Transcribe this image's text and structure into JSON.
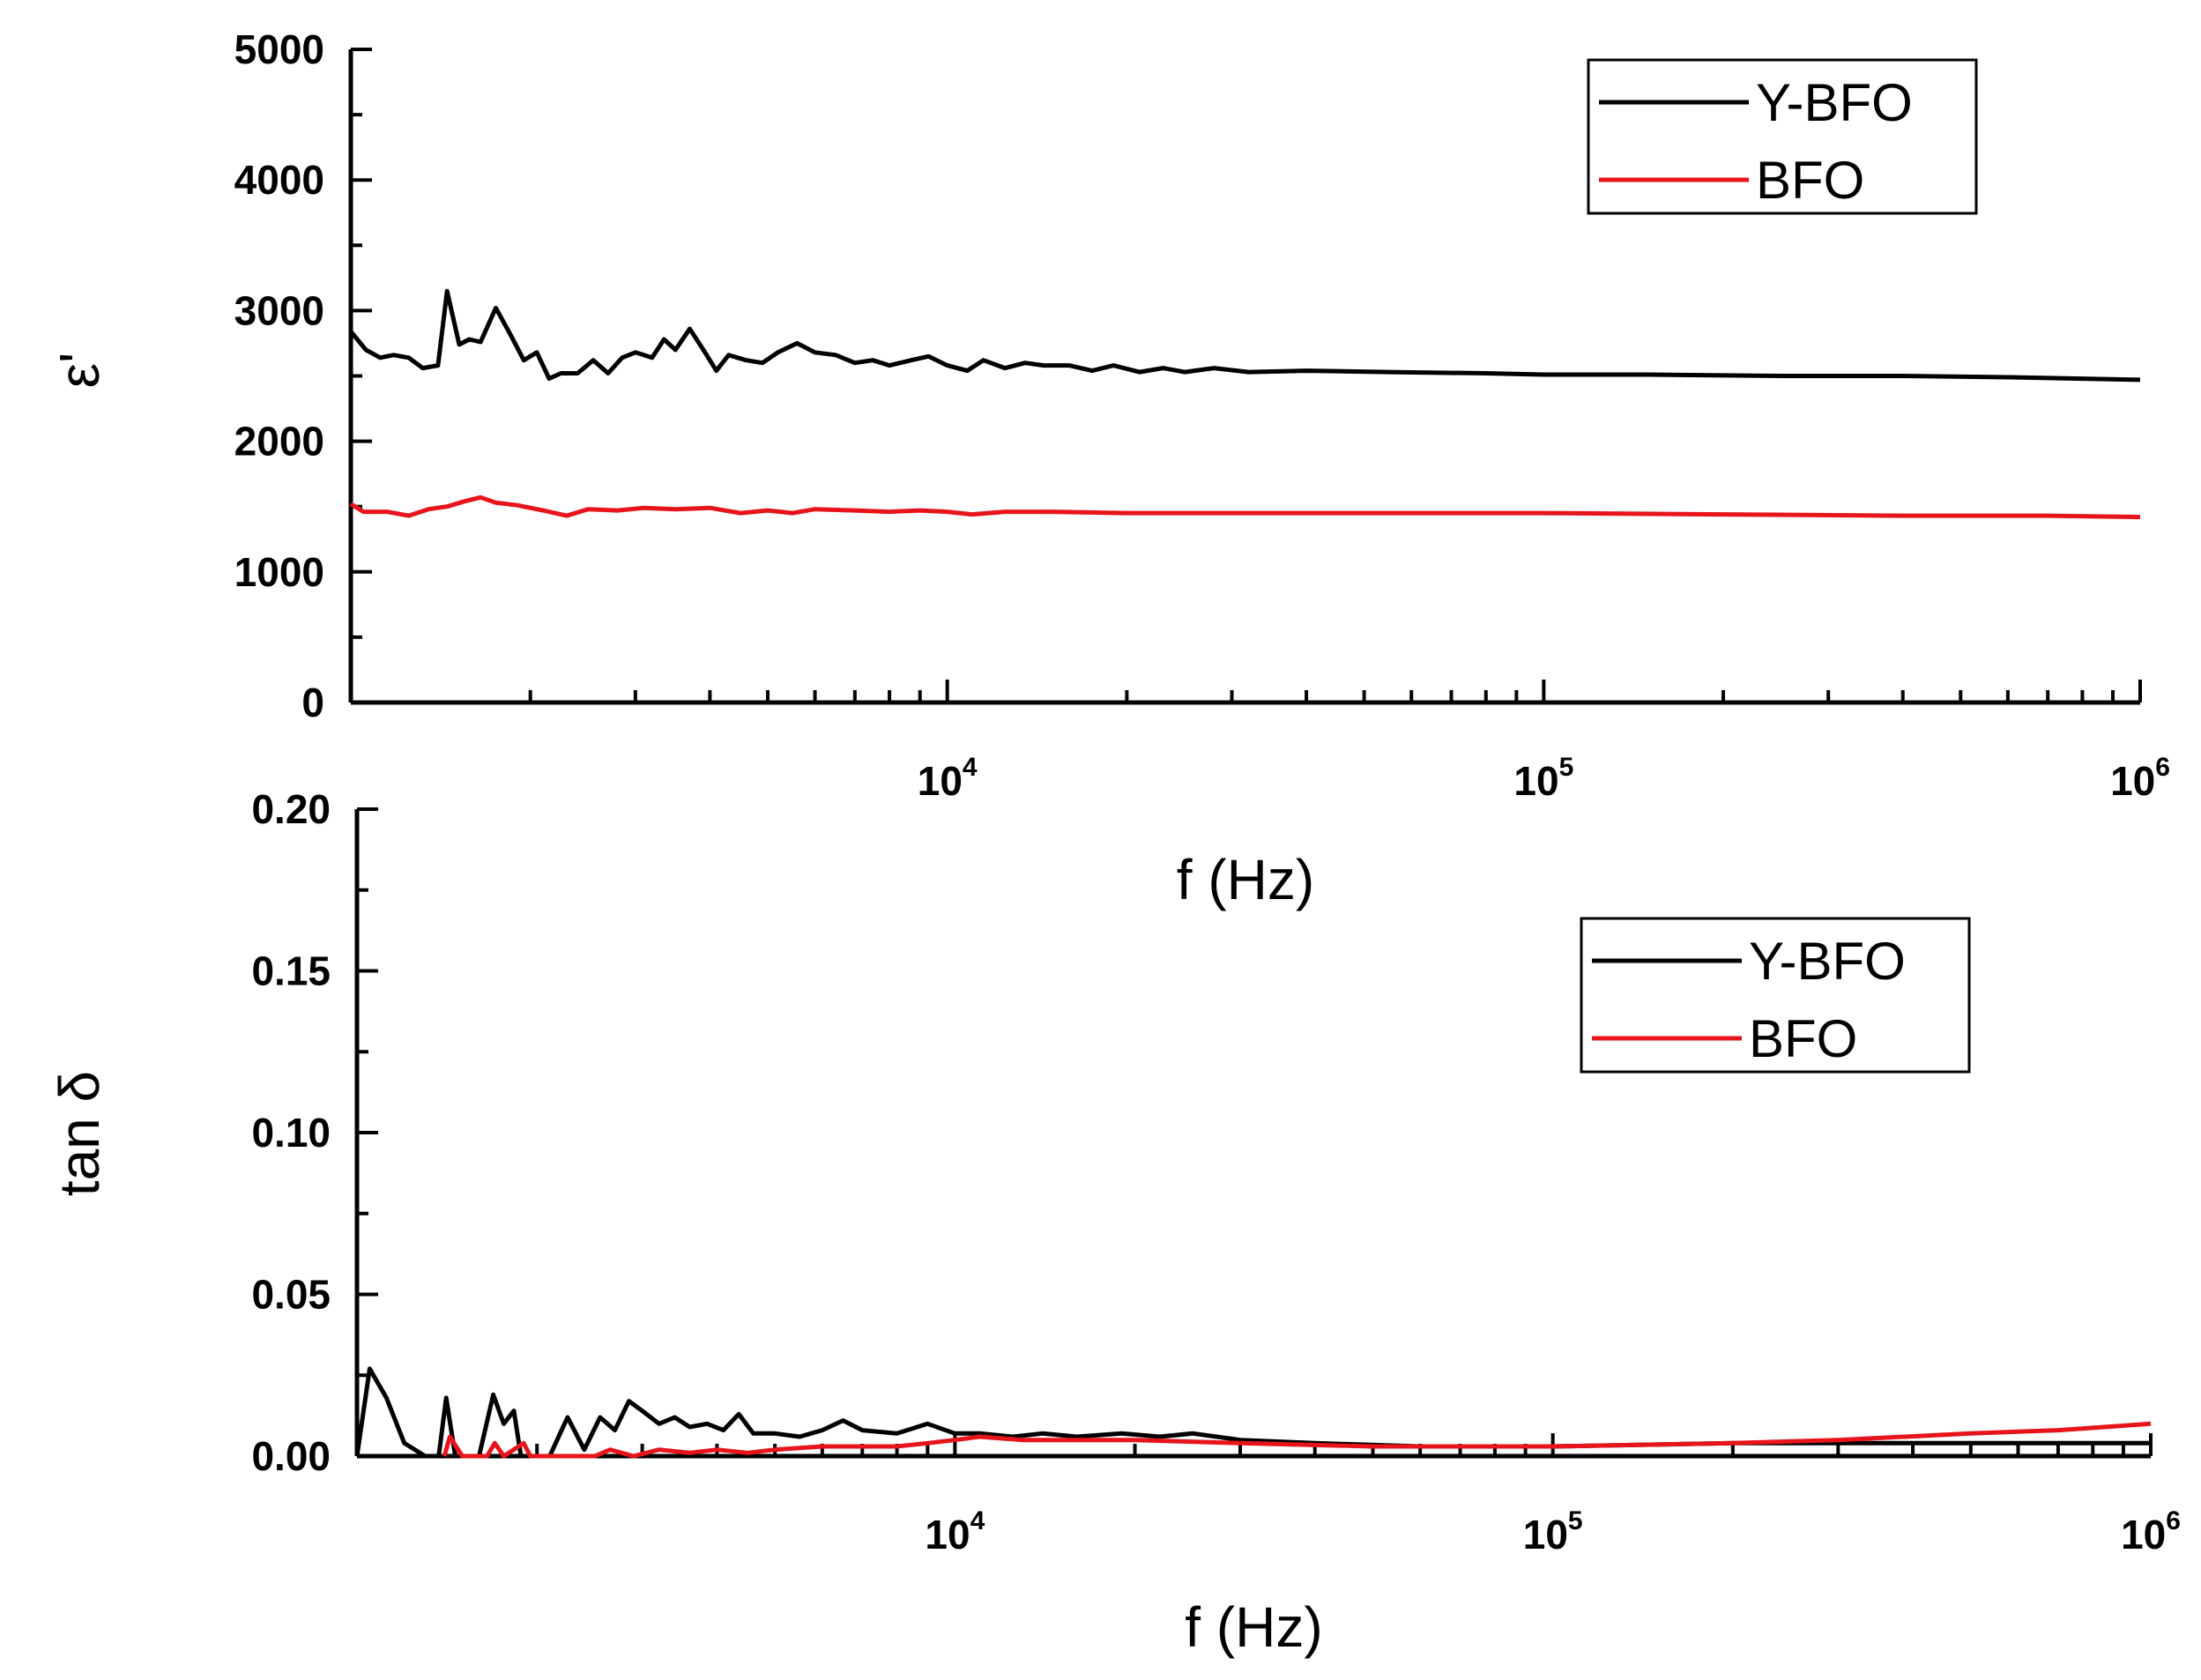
{
  "chart_data": [
    {
      "type": "line",
      "x_scale": "log",
      "xlim": [
        1000,
        1000000
      ],
      "ylim": [
        0,
        5000
      ],
      "ylabel": "ε'",
      "xlabel": "f (Hz)",
      "y_ticks": [
        "0",
        "1000",
        "2000",
        "3000",
        "4000",
        "5000"
      ],
      "x_ticks": [
        {
          "value": 10000,
          "base": "10",
          "exp": "4"
        },
        {
          "value": 100000,
          "base": "10",
          "exp": "5"
        },
        {
          "value": 1000000,
          "base": "10",
          "exp": "6"
        }
      ],
      "legend": {
        "position": "top-right"
      },
      "series": [
        {
          "name": "Y-BFO",
          "color": "#000000",
          "points": [
            [
              1000,
              2840
            ],
            [
              1060,
              2700
            ],
            [
              1120,
              2640
            ],
            [
              1180,
              2660
            ],
            [
              1250,
              2640
            ],
            [
              1320,
              2560
            ],
            [
              1400,
              2580
            ],
            [
              1450,
              3150
            ],
            [
              1520,
              2740
            ],
            [
              1580,
              2780
            ],
            [
              1650,
              2760
            ],
            [
              1750,
              3020
            ],
            [
              1850,
              2820
            ],
            [
              1950,
              2620
            ],
            [
              2050,
              2680
            ],
            [
              2150,
              2480
            ],
            [
              2250,
              2520
            ],
            [
              2400,
              2520
            ],
            [
              2550,
              2620
            ],
            [
              2700,
              2520
            ],
            [
              2850,
              2640
            ],
            [
              3000,
              2680
            ],
            [
              3200,
              2640
            ],
            [
              3350,
              2780
            ],
            [
              3500,
              2700
            ],
            [
              3700,
              2860
            ],
            [
              3900,
              2700
            ],
            [
              4100,
              2540
            ],
            [
              4300,
              2660
            ],
            [
              4600,
              2620
            ],
            [
              4900,
              2600
            ],
            [
              5200,
              2680
            ],
            [
              5600,
              2750
            ],
            [
              6000,
              2680
            ],
            [
              6500,
              2660
            ],
            [
              7000,
              2600
            ],
            [
              7500,
              2620
            ],
            [
              8000,
              2580
            ],
            [
              8700,
              2620
            ],
            [
              9300,
              2650
            ],
            [
              10000,
              2580
            ],
            [
              10800,
              2540
            ],
            [
              11500,
              2620
            ],
            [
              12500,
              2560
            ],
            [
              13500,
              2600
            ],
            [
              14500,
              2580
            ],
            [
              16000,
              2580
            ],
            [
              17500,
              2540
            ],
            [
              19000,
              2580
            ],
            [
              21000,
              2530
            ],
            [
              23000,
              2560
            ],
            [
              25000,
              2530
            ],
            [
              28000,
              2560
            ],
            [
              32000,
              2530
            ],
            [
              40000,
              2540
            ],
            [
              55000,
              2530
            ],
            [
              80000,
              2520
            ],
            [
              100000,
              2510
            ],
            [
              150000,
              2510
            ],
            [
              250000,
              2500
            ],
            [
              400000,
              2500
            ],
            [
              600000,
              2490
            ],
            [
              1000000,
              2470
            ]
          ]
        },
        {
          "name": "BFO",
          "color": "#e8141c",
          "points": [
            [
              1000,
              1520
            ],
            [
              1050,
              1460
            ],
            [
              1150,
              1460
            ],
            [
              1250,
              1430
            ],
            [
              1350,
              1480
            ],
            [
              1450,
              1500
            ],
            [
              1550,
              1540
            ],
            [
              1650,
              1570
            ],
            [
              1750,
              1530
            ],
            [
              1900,
              1510
            ],
            [
              2100,
              1470
            ],
            [
              2300,
              1430
            ],
            [
              2500,
              1480
            ],
            [
              2800,
              1470
            ],
            [
              3100,
              1490
            ],
            [
              3500,
              1480
            ],
            [
              4000,
              1490
            ],
            [
              4500,
              1450
            ],
            [
              5000,
              1470
            ],
            [
              5500,
              1450
            ],
            [
              6000,
              1480
            ],
            [
              7000,
              1470
            ],
            [
              8000,
              1460
            ],
            [
              9000,
              1470
            ],
            [
              10000,
              1460
            ],
            [
              11000,
              1440
            ],
            [
              12500,
              1460
            ],
            [
              15000,
              1460
            ],
            [
              20000,
              1450
            ],
            [
              30000,
              1450
            ],
            [
              50000,
              1450
            ],
            [
              100000,
              1450
            ],
            [
              200000,
              1440
            ],
            [
              400000,
              1430
            ],
            [
              700000,
              1430
            ],
            [
              1000000,
              1420
            ]
          ]
        }
      ]
    },
    {
      "type": "line",
      "x_scale": "log",
      "xlim": [
        1000,
        1000000
      ],
      "ylim": [
        0,
        0.2
      ],
      "ylabel": "tan δ",
      "xlabel": "f (Hz)",
      "y_ticks": [
        "0.00",
        "0.05",
        "0.10",
        "0.15",
        "0.20"
      ],
      "x_ticks": [
        {
          "value": 10000,
          "base": "10",
          "exp": "4"
        },
        {
          "value": 100000,
          "base": "10",
          "exp": "5"
        },
        {
          "value": 1000000,
          "base": "10",
          "exp": "6"
        }
      ],
      "legend": {
        "position": "top-right"
      },
      "series": [
        {
          "name": "Y-BFO",
          "color": "#000000",
          "points": [
            [
              1000,
              0.0
            ],
            [
              1050,
              0.027
            ],
            [
              1120,
              0.018
            ],
            [
              1200,
              0.004
            ],
            [
              1300,
              0.0
            ],
            [
              1370,
              0.0
            ],
            [
              1410,
              0.018
            ],
            [
              1460,
              0.0
            ],
            [
              1600,
              0.0
            ],
            [
              1690,
              0.019
            ],
            [
              1760,
              0.01
            ],
            [
              1830,
              0.014
            ],
            [
              1880,
              0.0
            ],
            [
              2100,
              0.0
            ],
            [
              2250,
              0.012
            ],
            [
              2400,
              0.002
            ],
            [
              2550,
              0.012
            ],
            [
              2700,
              0.008
            ],
            [
              2850,
              0.017
            ],
            [
              3000,
              0.014
            ],
            [
              3200,
              0.01
            ],
            [
              3400,
              0.012
            ],
            [
              3600,
              0.009
            ],
            [
              3850,
              0.01
            ],
            [
              4100,
              0.008
            ],
            [
              4350,
              0.013
            ],
            [
              4600,
              0.007
            ],
            [
              5000,
              0.007
            ],
            [
              5500,
              0.006
            ],
            [
              6000,
              0.008
            ],
            [
              6500,
              0.011
            ],
            [
              7000,
              0.008
            ],
            [
              8000,
              0.007
            ],
            [
              9000,
              0.01
            ],
            [
              10000,
              0.007
            ],
            [
              11000,
              0.007
            ],
            [
              12500,
              0.006
            ],
            [
              14000,
              0.007
            ],
            [
              16000,
              0.006
            ],
            [
              19000,
              0.007
            ],
            [
              22000,
              0.006
            ],
            [
              25000,
              0.007
            ],
            [
              30000,
              0.005
            ],
            [
              40000,
              0.004
            ],
            [
              60000,
              0.003
            ],
            [
              100000,
              0.003
            ],
            [
              200000,
              0.004
            ],
            [
              400000,
              0.004
            ],
            [
              700000,
              0.004
            ],
            [
              1000000,
              0.004
            ]
          ]
        },
        {
          "name": "BFO",
          "color": "#e8141c",
          "points": [
            [
              1400,
              0.0
            ],
            [
              1430,
              0.006
            ],
            [
              1500,
              0.0
            ],
            [
              1650,
              0.0
            ],
            [
              1700,
              0.004
            ],
            [
              1760,
              0.0
            ],
            [
              1900,
              0.004
            ],
            [
              1950,
              0.0
            ],
            [
              2500,
              0.0
            ],
            [
              2650,
              0.002
            ],
            [
              2900,
              0.0
            ],
            [
              3200,
              0.002
            ],
            [
              3600,
              0.001
            ],
            [
              4000,
              0.002
            ],
            [
              4500,
              0.001
            ],
            [
              5000,
              0.002
            ],
            [
              6000,
              0.003
            ],
            [
              7000,
              0.003
            ],
            [
              8000,
              0.003
            ],
            [
              9000,
              0.004
            ],
            [
              10000,
              0.005
            ],
            [
              11000,
              0.006
            ],
            [
              13000,
              0.005
            ],
            [
              15000,
              0.005
            ],
            [
              20000,
              0.005
            ],
            [
              30000,
              0.004
            ],
            [
              50000,
              0.003
            ],
            [
              100000,
              0.003
            ],
            [
              200000,
              0.004
            ],
            [
              300000,
              0.005
            ],
            [
              500000,
              0.007
            ],
            [
              700000,
              0.008
            ],
            [
              1000000,
              0.01
            ]
          ]
        }
      ]
    }
  ]
}
